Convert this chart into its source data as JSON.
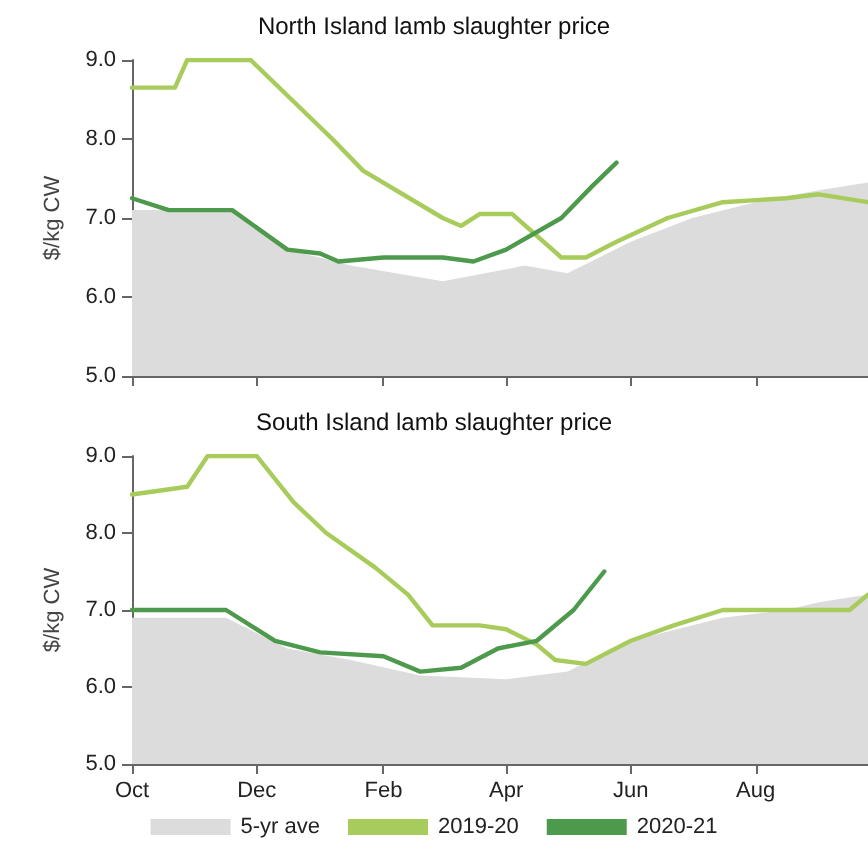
{
  "chart_data": [
    {
      "type": "line",
      "title": "North Island lamb slaughter price",
      "ylabel": "$/kg CW",
      "xlim": [
        "2019-10-01",
        "2020-09-25"
      ],
      "xticks": [
        {
          "value": "2019-10-01",
          "label": null
        },
        {
          "value": "2019-12-01",
          "label": null
        },
        {
          "value": "2020-02-01",
          "label": null
        },
        {
          "value": "2020-04-01",
          "label": null
        },
        {
          "value": "2020-06-01",
          "label": null
        },
        {
          "value": "2020-08-01",
          "label": null
        }
      ],
      "ylim": [
        5,
        9
      ],
      "yticks": [
        {
          "value": 5,
          "label": "5.0"
        },
        {
          "value": 6,
          "label": "6.0"
        },
        {
          "value": 7,
          "label": "7.0"
        },
        {
          "value": 8,
          "label": "8.0"
        },
        {
          "value": 9,
          "label": "9.0"
        }
      ],
      "tick_labels": "y",
      "grid": false,
      "legend": false,
      "marker": "none",
      "series": [
        {
          "type": "area",
          "color": "#dcdcdc",
          "x": [
            "2019-10-01",
            "2019-11-19",
            "2019-12-16",
            "2020-01-16",
            "2020-03-01",
            "2020-04-01",
            "2020-04-10",
            "2020-05-01",
            "2020-06-01",
            "2020-07-01",
            "2020-08-01",
            "2020-09-01",
            "2020-09-25"
          ],
          "values": [
            7.1,
            7.1,
            6.6,
            6.4,
            6.2,
            6.35,
            6.4,
            6.3,
            6.7,
            7.0,
            7.2,
            7.35,
            7.45
          ]
        },
        {
          "color": "#a8cc5c",
          "x": [
            "2019-10-01",
            "2019-10-22",
            "2019-10-28",
            "2019-11-28",
            "2020-01-07",
            "2020-01-22",
            "2020-03-01",
            "2020-03-10",
            "2020-03-19",
            "2020-04-04",
            "2020-04-28",
            "2020-05-10",
            "2020-05-25",
            "2020-06-19",
            "2020-07-16",
            "2020-08-16",
            "2020-09-01",
            "2020-09-25"
          ],
          "values": [
            8.65,
            8.65,
            9.0,
            9.0,
            8.0,
            7.6,
            7.0,
            6.9,
            7.05,
            7.05,
            6.5,
            6.5,
            6.7,
            7.0,
            7.2,
            7.25,
            7.3,
            7.2
          ]
        },
        {
          "color": "#4e9a4c",
          "x": [
            "2019-10-01",
            "2019-10-19",
            "2019-11-19",
            "2019-12-16",
            "2020-01-01",
            "2020-01-10",
            "2020-02-01",
            "2020-03-01",
            "2020-03-16",
            "2020-04-01",
            "2020-04-28",
            "2020-05-13",
            "2020-05-25"
          ],
          "values": [
            7.25,
            7.1,
            7.1,
            6.6,
            6.55,
            6.45,
            6.5,
            6.5,
            6.45,
            6.6,
            7.0,
            7.4,
            7.7
          ]
        }
      ]
    },
    {
      "type": "line",
      "title": "South Island lamb slaughter price",
      "ylabel": "$/kg CW",
      "xlim": [
        "2019-10-01",
        "2020-09-25"
      ],
      "xticks": [
        {
          "value": "2019-10-01",
          "label": "Oct"
        },
        {
          "value": "2019-12-01",
          "label": "Dec"
        },
        {
          "value": "2020-02-01",
          "label": "Feb"
        },
        {
          "value": "2020-04-01",
          "label": "Apr"
        },
        {
          "value": "2020-06-01",
          "label": "Jun"
        },
        {
          "value": "2020-08-01",
          "label": "Aug"
        }
      ],
      "ylim": [
        5,
        9
      ],
      "yticks": [
        {
          "value": 5,
          "label": "5.0"
        },
        {
          "value": 6,
          "label": "6.0"
        },
        {
          "value": 7,
          "label": "7.0"
        },
        {
          "value": 8,
          "label": "8.0"
        },
        {
          "value": 9,
          "label": "9.0"
        }
      ],
      "grid": false,
      "legend": "bottom",
      "marker": "none",
      "series": [
        {
          "type": "area",
          "name": "5-yr ave",
          "color": "#dcdcdc",
          "x": [
            "2019-10-01",
            "2019-11-16",
            "2019-12-16",
            "2020-01-16",
            "2020-02-19",
            "2020-04-01",
            "2020-05-01",
            "2020-06-01",
            "2020-07-16",
            "2020-08-16",
            "2020-09-01",
            "2020-09-25"
          ],
          "values": [
            6.9,
            6.9,
            6.5,
            6.35,
            6.15,
            6.1,
            6.2,
            6.6,
            6.9,
            7.0,
            7.1,
            7.2
          ]
        },
        {
          "name": "2019-20",
          "color": "#a8cc5c",
          "x": [
            "2019-10-01",
            "2019-10-28",
            "2019-11-07",
            "2019-12-01",
            "2019-12-19",
            "2020-01-04",
            "2020-01-28",
            "2020-02-13",
            "2020-02-25",
            "2020-03-19",
            "2020-04-01",
            "2020-04-16",
            "2020-04-25",
            "2020-05-10",
            "2020-06-01",
            "2020-06-22",
            "2020-07-16",
            "2020-08-16",
            "2020-09-16",
            "2020-09-25"
          ],
          "values": [
            8.5,
            8.6,
            9.0,
            9.0,
            8.4,
            8.0,
            7.55,
            7.2,
            6.8,
            6.8,
            6.75,
            6.55,
            6.35,
            6.3,
            6.6,
            6.8,
            7.0,
            7.0,
            7.0,
            7.2
          ]
        },
        {
          "name": "2020-21",
          "color": "#4e9a4c",
          "x": [
            "2019-10-01",
            "2019-11-16",
            "2019-12-10",
            "2020-01-01",
            "2020-02-01",
            "2020-02-19",
            "2020-03-10",
            "2020-03-28",
            "2020-04-16",
            "2020-05-04",
            "2020-05-19"
          ],
          "values": [
            7.0,
            7.0,
            6.6,
            6.45,
            6.4,
            6.2,
            6.25,
            6.5,
            6.6,
            7.0,
            7.5
          ]
        }
      ]
    }
  ]
}
